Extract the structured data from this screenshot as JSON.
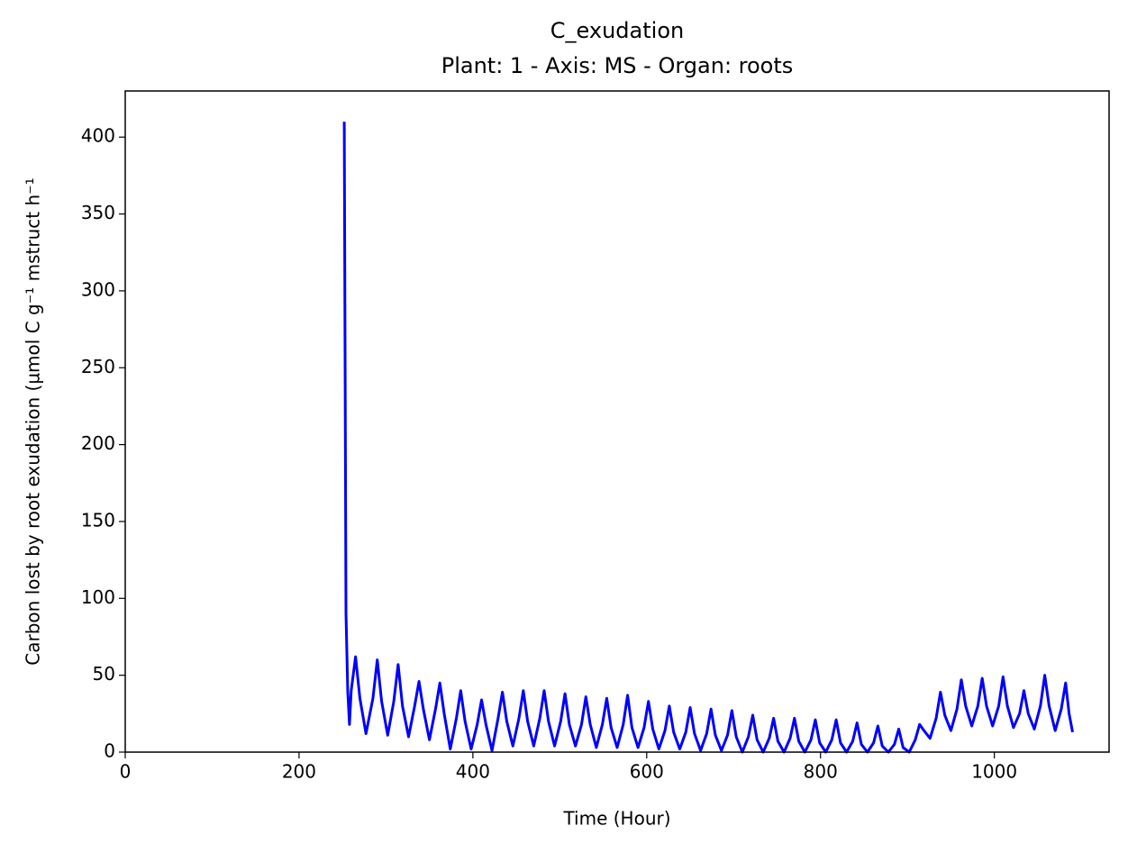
{
  "chart_data": {
    "type": "line",
    "title": "C_exudation",
    "subtitle": "Plant: 1 - Axis: MS - Organ: roots",
    "x_label": "Time (Hour)",
    "y_label": "Carbon lost by root exudation (µmol C g⁻¹ mstruct h⁻¹",
    "color": "#0000ff",
    "xlim": [
      0,
      1132
    ],
    "xticks": [
      0,
      200,
      400,
      600,
      800,
      1000
    ],
    "ylim": [
      0,
      430
    ],
    "yticks": [
      0,
      50,
      100,
      150,
      200,
      250,
      300,
      350,
      400
    ],
    "grid": false,
    "x": [
      252,
      254,
      256,
      258,
      260,
      265,
      270,
      277,
      285,
      290,
      295,
      302,
      309,
      314,
      319,
      326,
      333,
      338,
      343,
      350,
      357,
      362,
      367,
      374,
      381,
      386,
      391,
      398,
      405,
      410,
      415,
      422,
      429,
      434,
      439,
      446,
      453,
      458,
      463,
      470,
      477,
      482,
      487,
      494,
      501,
      506,
      511,
      518,
      525,
      530,
      535,
      542,
      549,
      554,
      559,
      566,
      573,
      578,
      583,
      590,
      597,
      602,
      607,
      614,
      621,
      626,
      631,
      638,
      645,
      650,
      655,
      662,
      669,
      674,
      679,
      686,
      693,
      698,
      703,
      710,
      717,
      722,
      727,
      734,
      741,
      746,
      751,
      758,
      765,
      770,
      775,
      782,
      789,
      794,
      799,
      806,
      813,
      818,
      823,
      830,
      837,
      842,
      847,
      854,
      861,
      866,
      871,
      878,
      885,
      890,
      895,
      902,
      909,
      914,
      919,
      926,
      933,
      938,
      943,
      950,
      957,
      962,
      967,
      974,
      981,
      986,
      991,
      998,
      1005,
      1010,
      1015,
      1022,
      1029,
      1034,
      1039,
      1046,
      1053,
      1058,
      1063,
      1070,
      1077,
      1082,
      1086,
      1090
    ],
    "values": [
      410,
      90,
      40,
      18,
      40,
      62,
      35,
      12,
      35,
      60,
      33,
      11,
      33,
      57,
      30,
      10,
      30,
      46,
      28,
      8,
      28,
      45,
      25,
      2,
      22,
      40,
      20,
      2,
      18,
      34,
      18,
      1,
      22,
      39,
      20,
      4,
      22,
      40,
      20,
      4,
      22,
      40,
      20,
      4,
      20,
      38,
      18,
      4,
      18,
      36,
      18,
      3,
      18,
      35,
      16,
      3,
      18,
      37,
      16,
      3,
      16,
      33,
      15,
      2,
      14,
      30,
      13,
      2,
      13,
      29,
      12,
      1,
      12,
      28,
      11,
      1,
      11,
      27,
      10,
      0,
      10,
      24,
      8,
      0,
      9,
      22,
      7,
      0,
      9,
      22,
      7,
      0,
      8,
      21,
      6,
      0,
      8,
      21,
      6,
      0,
      7,
      19,
      5,
      0,
      6,
      17,
      4,
      0,
      5,
      15,
      3,
      0,
      8,
      18,
      14,
      9,
      22,
      39,
      24,
      14,
      28,
      47,
      30,
      17,
      30,
      48,
      30,
      17,
      30,
      49,
      30,
      16,
      25,
      40,
      25,
      15,
      30,
      50,
      30,
      14,
      28,
      45,
      25,
      13
    ]
  }
}
